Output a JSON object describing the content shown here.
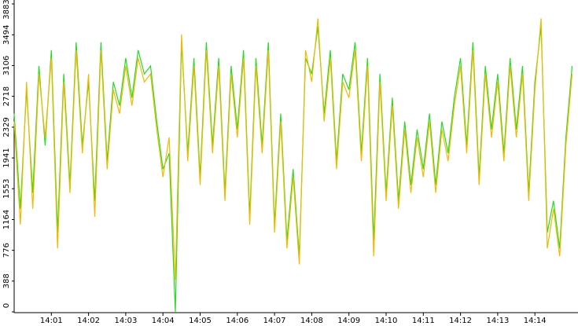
{
  "chart_data": {
    "type": "line",
    "categories": [
      null,
      null,
      null,
      null,
      null,
      null,
      "14:01",
      null,
      null,
      null,
      null,
      null,
      "14:02",
      null,
      null,
      null,
      null,
      null,
      "14:03",
      null,
      null,
      null,
      null,
      null,
      "14:04",
      null,
      null,
      null,
      null,
      null,
      "14:05",
      null,
      null,
      null,
      null,
      null,
      "14:06",
      null,
      null,
      null,
      null,
      null,
      "14:07",
      null,
      null,
      null,
      null,
      null,
      "14:08",
      null,
      null,
      null,
      null,
      null,
      "14:09",
      null,
      null,
      null,
      null,
      null,
      "14:10",
      null,
      null,
      null,
      null,
      null,
      "14:11",
      null,
      null,
      null,
      null,
      null,
      "14:12",
      null,
      null,
      null,
      null,
      null,
      "14:13",
      null,
      null,
      null,
      null,
      null,
      "14:14",
      null,
      null,
      null,
      null,
      null,
      null
    ],
    "series": [
      {
        "color": "#22dd22",
        "values": [
          2500,
          1300,
          2800,
          1500,
          3100,
          2100,
          3300,
          1000,
          3000,
          1600,
          3400,
          2100,
          2900,
          1400,
          3400,
          1900,
          2900,
          2600,
          3200,
          2700,
          3300,
          3000,
          3100,
          2400,
          1800,
          2000,
          0,
          3400,
          2000,
          3200,
          1700,
          3400,
          2100,
          3200,
          1500,
          3100,
          2300,
          3300,
          1200,
          3200,
          2100,
          3400,
          1100,
          2500,
          900,
          1800,
          700,
          3200,
          3000,
          3600,
          2500,
          3300,
          1900,
          3000,
          2800,
          3400,
          2000,
          3200,
          900,
          3000,
          1500,
          2700,
          1400,
          2400,
          1600,
          2300,
          1800,
          2500,
          1600,
          2400,
          2000,
          2700,
          3200,
          2100,
          3400,
          1700,
          3100,
          2300,
          3000,
          2000,
          3200,
          2300,
          3100,
          1500,
          2900,
          3600,
          1000,
          1400,
          800,
          2200,
          3100
        ]
      },
      {
        "color": "#f5b800",
        "values": [
          2400,
          1100,
          2900,
          1300,
          3000,
          2200,
          3200,
          800,
          2900,
          1500,
          3300,
          2000,
          3000,
          1200,
          3300,
          1800,
          2800,
          2500,
          3100,
          2600,
          3200,
          2900,
          3000,
          2300,
          1700,
          2200,
          400,
          3500,
          1900,
          3100,
          1600,
          3300,
          2000,
          3100,
          1400,
          3000,
          2200,
          3200,
          1100,
          3100,
          2000,
          3300,
          1000,
          2400,
          800,
          1700,
          600,
          3300,
          2900,
          3700,
          2400,
          3200,
          1800,
          2900,
          2700,
          3300,
          1900,
          3100,
          700,
          2900,
          1400,
          2600,
          1300,
          2300,
          1500,
          2200,
          1700,
          2400,
          1500,
          2300,
          1900,
          2600,
          3100,
          2000,
          3300,
          1600,
          3000,
          2200,
          2900,
          1900,
          3100,
          2200,
          3000,
          1400,
          2800,
          3700,
          800,
          1300,
          700,
          2100,
          3000
        ]
      }
    ],
    "ylim": [
      0,
      3883
    ],
    "yticks": [
      0,
      388,
      776,
      1164,
      1553,
      1941,
      2329,
      2718,
      3106,
      3494,
      3883
    ]
  }
}
